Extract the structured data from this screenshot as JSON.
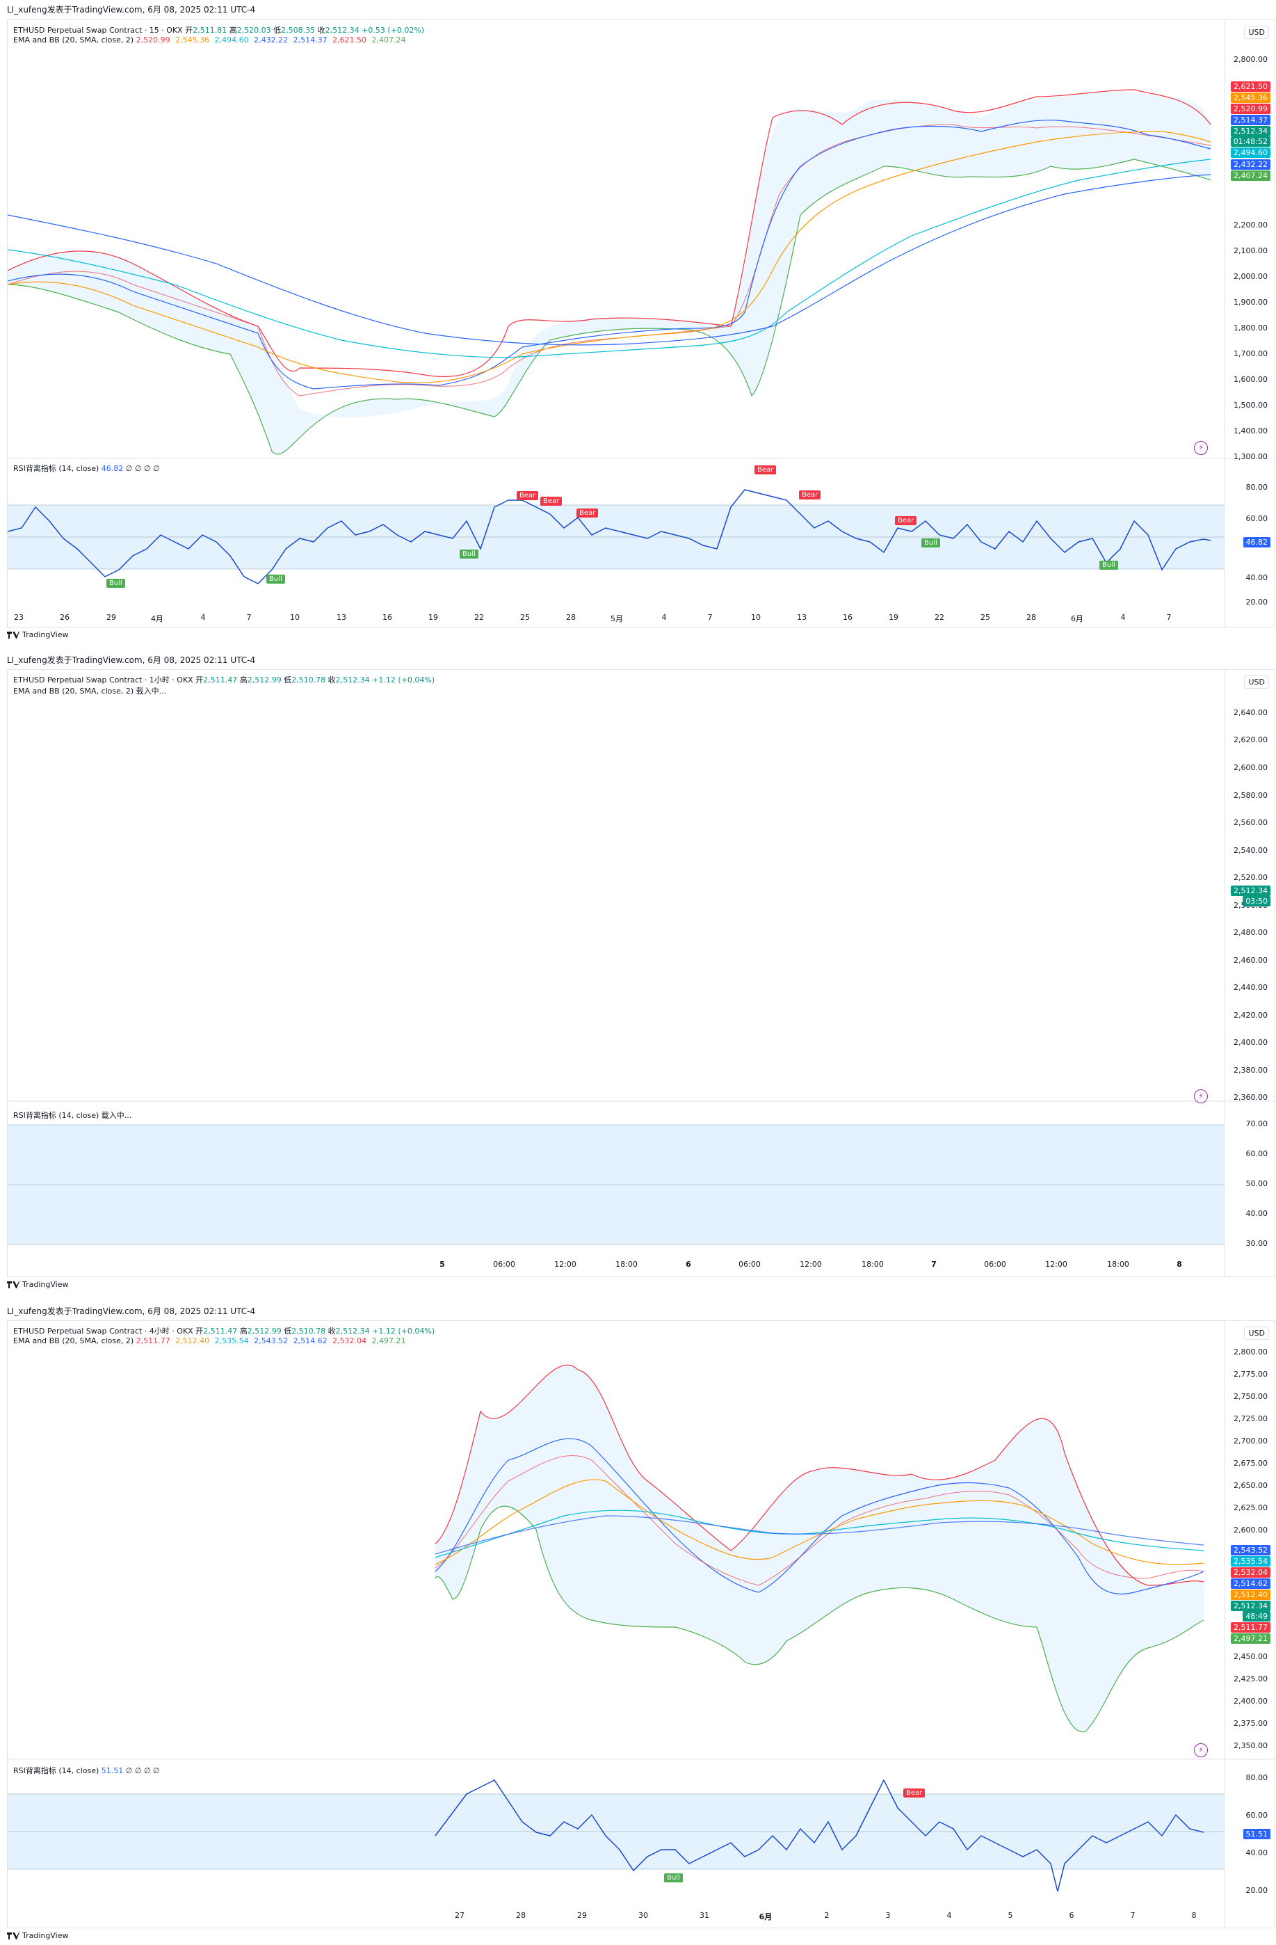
{
  "shots": [
    {
      "header": "LI_xufeng发表于TradingView.com, 6月 08, 2025 02:11 UTC-4",
      "symbol": "ETHUSD Perpetual Swap Contract · 15 · OKX",
      "ohlc": {
        "o_label": "开",
        "o": "2,511.81",
        "h_label": "高",
        "h": "2,520.03",
        "l_label": "低",
        "l": "2,508.35",
        "c_label": "收",
        "c": "2,512.34",
        "chg": "+0.53 (+0.02%)"
      },
      "ema_label": "EMA and BB (20, SMA, close, 2)",
      "ema_values": [
        "2,520.99",
        "2,545.36",
        "2,494.60",
        "2,432.22",
        "2,514.37",
        "2,621.50",
        "2,407.24"
      ],
      "currency": "USD",
      "y_ticks": [
        "2,800.00",
        "2,700.00",
        "2,600.00",
        "2,500.00",
        "2,400.00",
        "2,300.00",
        "2,200.00",
        "2,100.00",
        "2,000.00",
        "1,900.00",
        "1,800.00",
        "1,700.00",
        "1,600.00",
        "1,500.00",
        "1,400.00",
        "1,300.00"
      ],
      "price_tags": [
        {
          "text": "2,621.50",
          "color": "#f23645"
        },
        {
          "text": "2,545.36",
          "color": "#ff9800"
        },
        {
          "text": "2,520.99",
          "color": "#f23645"
        },
        {
          "text": "2,514.37",
          "color": "#2962ff"
        },
        {
          "text": "2,512.34",
          "color": "#089981"
        },
        {
          "text": "01:48:52",
          "color": "#089981"
        },
        {
          "text": "2,494.60",
          "color": "#00bcd4"
        },
        {
          "text": "2,432.22",
          "color": "#2962ff"
        },
        {
          "text": "2,407.24",
          "color": "#4caf50"
        }
      ],
      "rsi_label": "RSI背离指标 (14, close)",
      "rsi_value": "46.82",
      "rsi_ticks": [
        "80.00",
        "60.00",
        "40.00",
        "20.00"
      ],
      "x_labels": [
        "23",
        "26",
        "29",
        "4月",
        "4",
        "7",
        "10",
        "13",
        "16",
        "19",
        "22",
        "25",
        "28",
        "5月",
        "4",
        "7",
        "10",
        "13",
        "16",
        "19",
        "22",
        "25",
        "28",
        "6月",
        "4",
        "7"
      ],
      "signals": [
        "Bull",
        "Bull",
        "Bull",
        "Bear",
        "Bear",
        "Bear",
        "Bear",
        "Bear",
        "Bear",
        "Bull",
        "Bull"
      ],
      "footer": "TradingView"
    },
    {
      "header": "LI_xufeng发表于TradingView.com, 6月 08, 2025 02:11 UTC-4",
      "symbol": "ETHUSD Perpetual Swap Contract · 1小时 · OKX",
      "ohlc": {
        "o_label": "开",
        "o": "2,511.47",
        "h_label": "高",
        "h": "2,512.99",
        "l_label": "低",
        "l": "2,510.78",
        "c_label": "收",
        "c": "2,512.34",
        "chg": "+1.12 (+0.04%)"
      },
      "ema_label": "EMA and BB (20, SMA, close, 2) 载入中...",
      "currency": "USD",
      "y_ticks": [
        "2,640.00",
        "2,620.00",
        "2,600.00",
        "2,580.00",
        "2,560.00",
        "2,540.00",
        "2,520.00",
        "2,500.00",
        "2,480.00",
        "2,460.00",
        "2,440.00",
        "2,420.00",
        "2,400.00",
        "2,380.00",
        "2,360.00"
      ],
      "price_tags": [
        {
          "text": "2,512.34",
          "color": "#089981"
        },
        {
          "text": "03:50",
          "color": "#089981"
        }
      ],
      "rsi_label": "RSI背离指标 (14, close) 载入中...",
      "rsi_ticks": [
        "70.00",
        "60.00",
        "50.00",
        "40.00",
        "30.00"
      ],
      "x_labels": [
        "5",
        "06:00",
        "12:00",
        "18:00",
        "6",
        "06:00",
        "12:00",
        "18:00",
        "7",
        "06:00",
        "12:00",
        "18:00",
        "8"
      ],
      "footer": "TradingView"
    },
    {
      "header": "LI_xufeng发表于TradingView.com, 6月 08, 2025 02:11 UTC-4",
      "symbol": "ETHUSD Perpetual Swap Contract · 4小时 · OKX",
      "ohlc": {
        "o_label": "开",
        "o": "2,511.47",
        "h_label": "高",
        "h": "2,512.99",
        "l_label": "低",
        "l": "2,510.78",
        "c_label": "收",
        "c": "2,512.34",
        "chg": "+1.12 (+0.04%)"
      },
      "ema_label": "EMA and BB (20, SMA, close, 2)",
      "ema_values": [
        "2,511.77",
        "2,512.40",
        "2,535.54",
        "2,543.52",
        "2,514.62",
        "2,532.04",
        "2,497.21"
      ],
      "currency": "USD",
      "y_ticks": [
        "2,800.00",
        "2,775.00",
        "2,750.00",
        "2,725.00",
        "2,700.00",
        "2,675.00",
        "2,650.00",
        "2,625.00",
        "2,600.00",
        "2,575.00",
        "2,550.00",
        "2,525.00",
        "2,500.00",
        "2,475.00",
        "2,450.00",
        "2,425.00",
        "2,400.00",
        "2,375.00",
        "2,350.00"
      ],
      "price_tags": [
        {
          "text": "2,543.52",
          "color": "#2962ff"
        },
        {
          "text": "2,535.54",
          "color": "#00bcd4"
        },
        {
          "text": "2,532.04",
          "color": "#f23645"
        },
        {
          "text": "2,514.62",
          "color": "#2962ff"
        },
        {
          "text": "2,512.40",
          "color": "#ff9800"
        },
        {
          "text": "2,512.34",
          "color": "#089981"
        },
        {
          "text": "48:49",
          "color": "#089981"
        },
        {
          "text": "2,511.77",
          "color": "#f23645"
        },
        {
          "text": "2,497.21",
          "color": "#4caf50"
        }
      ],
      "rsi_label": "RSI背离指标 (14, close)",
      "rsi_value": "51.51",
      "rsi_ticks": [
        "80.00",
        "60.00",
        "40.00",
        "20.00"
      ],
      "x_labels": [
        "27",
        "28",
        "29",
        "30",
        "31",
        "6月",
        "2",
        "3",
        "4",
        "5",
        "6",
        "7",
        "8"
      ],
      "signals": [
        "Bull",
        "Bear"
      ],
      "footer": "TradingView"
    }
  ],
  "colors": {
    "ema_fast": "#f23645",
    "ema_orange": "#ff9800",
    "ema_cyan": "#00bcd4",
    "ema_blue": "#2962ff",
    "bb_upper": "#f23645",
    "bb_lower": "#4caf50",
    "bb_fill": "#e3f2fd",
    "rsi_line": "#1848cc",
    "rsi_band": "#e3f2fd",
    "bull": "#4caf50",
    "bear": "#f23645",
    "up_text": "#089981"
  }
}
